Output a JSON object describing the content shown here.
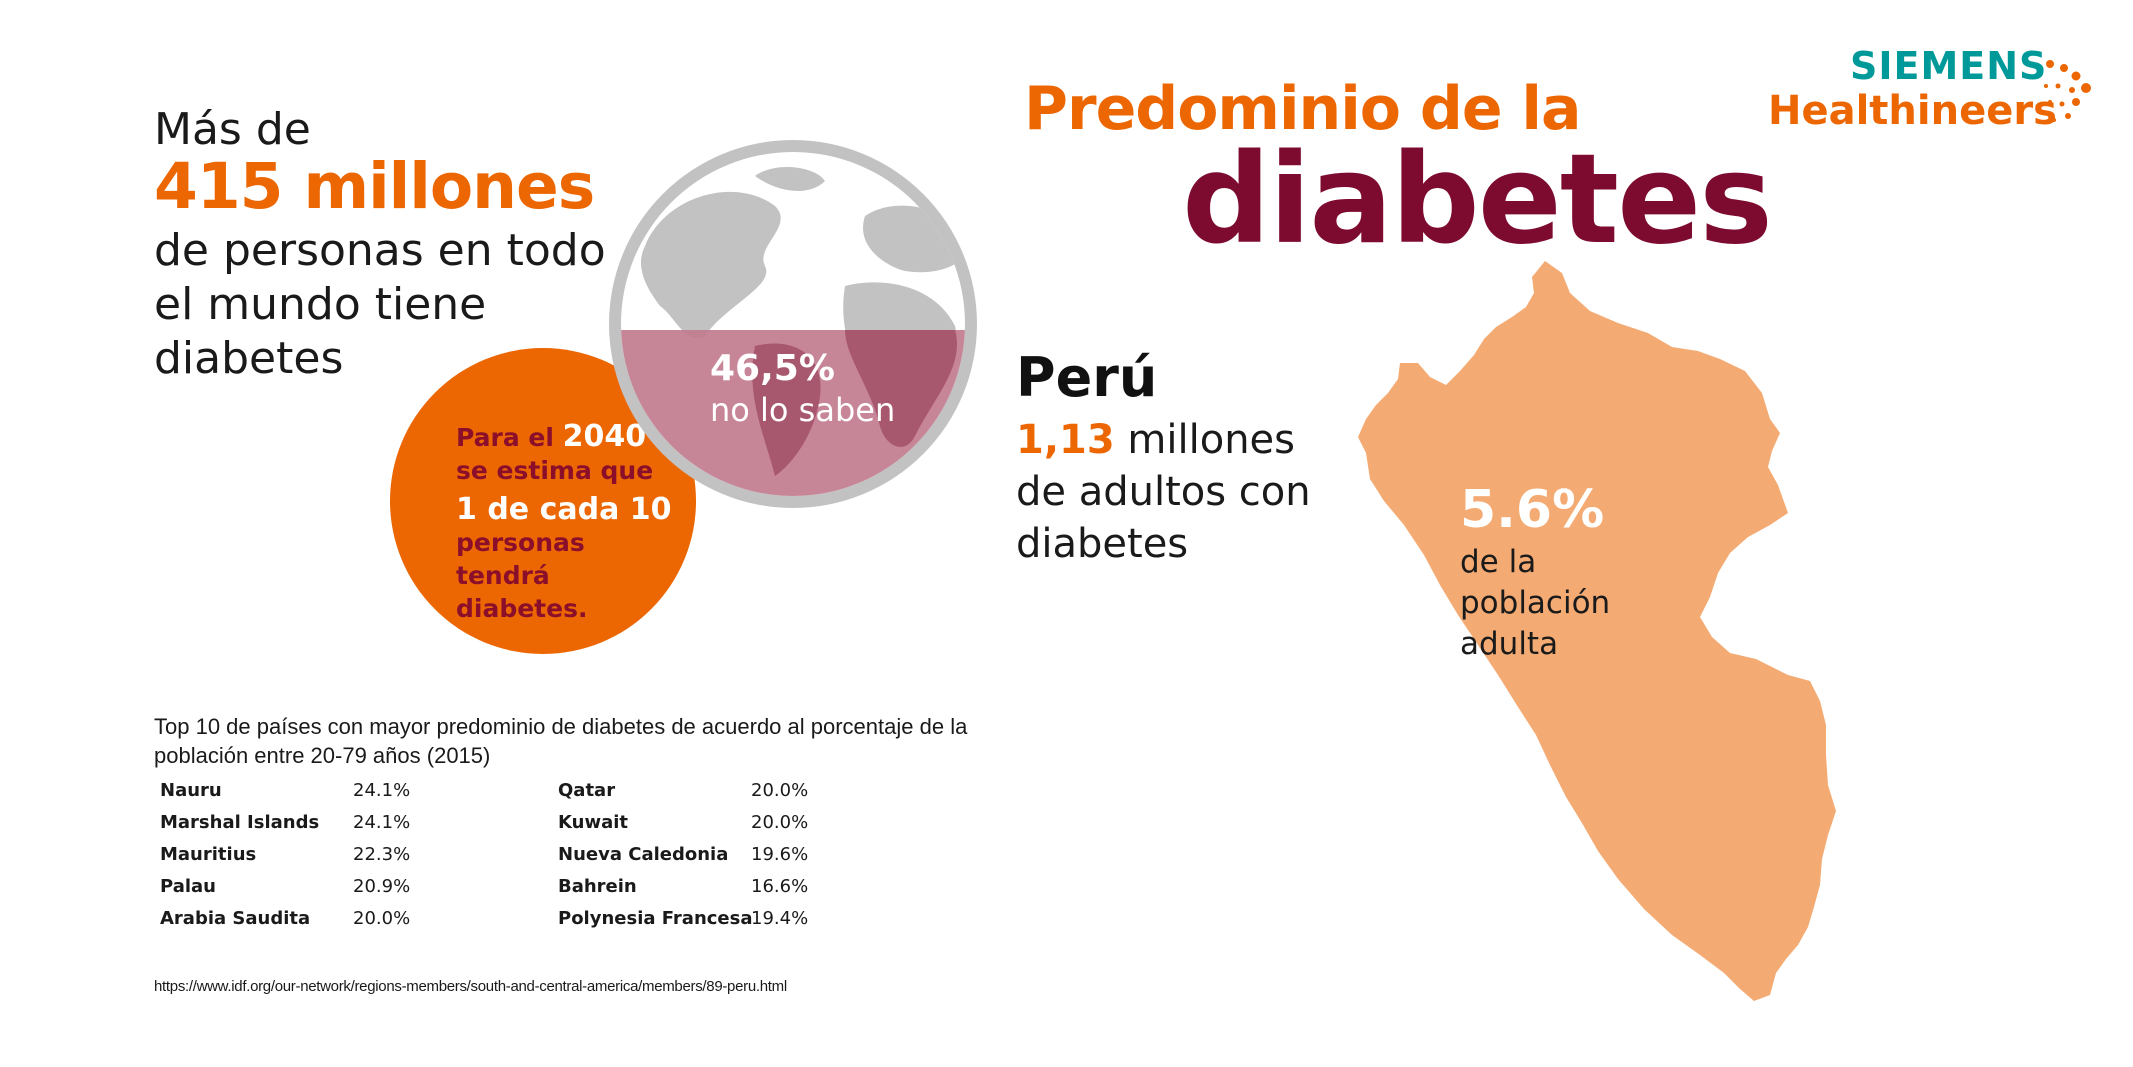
{
  "intro": {
    "line1": "Más de",
    "highlight": "415 millones",
    "line3": "de personas en todo el mundo tiene diabetes"
  },
  "globe": {
    "percent": "46,5%",
    "caption": "no lo saben",
    "share_not_aware": 0.465
  },
  "forecast": {
    "prefix": "Para el ",
    "year": "2040",
    "line2": "se estima que",
    "ratio": "1 de cada 10",
    "line4": "personas tendrá diabetes."
  },
  "title": {
    "line1": "Predominio de la",
    "line2": "diabetes"
  },
  "logo": {
    "brand": "SIEMENS",
    "sub": "Healthineers"
  },
  "peru": {
    "country": "Perú",
    "amount": "1,13",
    "amount_rest": " millones",
    "line2": "de adultos con diabetes",
    "map_percent": "5.6%",
    "map_caption": "de la población adulta"
  },
  "table": {
    "caption": "Top 10 de países con mayor predominio de diabetes de acuerdo al porcentaje de la población entre 20-79 años (2015)",
    "rows": [
      {
        "c1": "Nauru",
        "v1": "24.1%",
        "c2": "Qatar",
        "v2": "20.0%"
      },
      {
        "c1": "Marshal Islands",
        "v1": "24.1%",
        "c2": "Kuwait",
        "v2": "20.0%"
      },
      {
        "c1": "Mauritius",
        "v1": "22.3%",
        "c2": "Nueva Caledonia",
        "v2": "19.6%"
      },
      {
        "c1": "Palau",
        "v1": "20.9%",
        "c2": "Bahrein",
        "v2": "16.6%"
      },
      {
        "c1": "Arabia Saudita",
        "v1": "20.0%",
        "c2": "Polynesia Francesa",
        "v2": "19.4%"
      }
    ]
  },
  "source": "https://www.idf.org/our-network/regions-members/south-and-central-america/members/89-peru.html",
  "colors": {
    "orange": "#ec6602",
    "burgundy": "#7d0a2f",
    "teal": "#009999",
    "map_fill": "#f4ab73",
    "globe_gray": "#c2c2c2",
    "globe_fill": "#c27b8f"
  }
}
